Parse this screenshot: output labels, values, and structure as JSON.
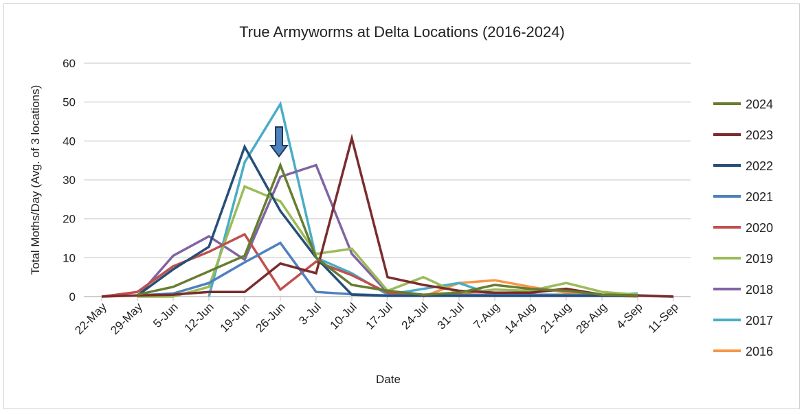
{
  "chart_data": {
    "type": "line",
    "title": "True Armyworms at Delta Locations (2016-2024)",
    "xlabel": "Date",
    "ylabel": "Total Moths/Day (Avg. of 3 locations)",
    "ylim": [
      0,
      60
    ],
    "yticks": [
      0,
      10,
      20,
      30,
      40,
      50,
      60
    ],
    "grid": true,
    "legend_position": "right",
    "categories": [
      "22-May",
      "29-May",
      "5-Jun",
      "12-Jun",
      "19-Jun",
      "26-Jun",
      "3-Jul",
      "10-Jul",
      "17-Jul",
      "24-Jul",
      "31-Jul",
      "7-Aug",
      "14-Aug",
      "21-Aug",
      "28-Aug",
      "4-Sep",
      "11-Sep"
    ],
    "annotation": {
      "type": "down-arrow",
      "at": "26-Jun",
      "color": "#4f81bd"
    },
    "series": [
      {
        "name": "2024",
        "color": "#667d2f",
        "values": [
          null,
          0.5,
          2.5,
          6.5,
          10.5,
          33.8,
          10,
          3,
          1.5,
          0.5,
          1,
          3,
          2,
          1.5,
          0.5,
          0.3,
          null
        ]
      },
      {
        "name": "2023",
        "color": "#7b2c2c",
        "values": [
          0,
          0.3,
          0.5,
          1.2,
          1.2,
          8.5,
          6,
          40.7,
          5,
          3,
          1.5,
          1,
          1,
          2,
          0.5,
          0.3,
          0
        ]
      },
      {
        "name": "2022",
        "color": "#254e79",
        "values": [
          null,
          0.3,
          7,
          12.8,
          38.5,
          22,
          10,
          0.5,
          0.2,
          0.2,
          0.2,
          0.2,
          0.2,
          0.2,
          0.2,
          0.2,
          null
        ]
      },
      {
        "name": "2021",
        "color": "#4f81bd",
        "values": [
          null,
          0.3,
          0.8,
          3.5,
          8.8,
          13.8,
          1.2,
          0.6,
          0.3,
          0.3,
          0.3,
          0.5,
          0.5,
          0.5,
          0.3,
          0.3,
          null
        ]
      },
      {
        "name": "2020",
        "color": "#c0504d",
        "values": [
          0,
          1.2,
          7.8,
          11.5,
          16,
          1.8,
          9,
          5.5,
          1,
          0.5,
          0.5,
          0.5,
          1,
          2,
          0.5,
          0.3,
          null
        ]
      },
      {
        "name": "2019",
        "color": "#9bbb59",
        "values": [
          null,
          0,
          0,
          2.5,
          28.3,
          24.5,
          11,
          12.3,
          1.5,
          5,
          0.8,
          1.8,
          1.5,
          3.5,
          1.2,
          0.5,
          null
        ]
      },
      {
        "name": "2018",
        "color": "#8064a2",
        "values": [
          null,
          0,
          10.5,
          15.5,
          9.5,
          30.8,
          33.8,
          11,
          1,
          0.3,
          0.2,
          0.2,
          0.2,
          0.2,
          0.2,
          0.2,
          0
        ]
      },
      {
        "name": "2017",
        "color": "#4bacc6",
        "values": [
          null,
          null,
          null,
          0,
          34.5,
          49.5,
          10,
          6,
          0.5,
          2,
          3.5,
          0.3,
          0.3,
          0.3,
          0.3,
          0.8,
          null
        ]
      },
      {
        "name": "2016",
        "color": "#f79646",
        "values": [
          null,
          null,
          null,
          null,
          null,
          null,
          null,
          null,
          null,
          0,
          3.5,
          4.2,
          2.5,
          1,
          0.3,
          0,
          null
        ]
      }
    ]
  }
}
